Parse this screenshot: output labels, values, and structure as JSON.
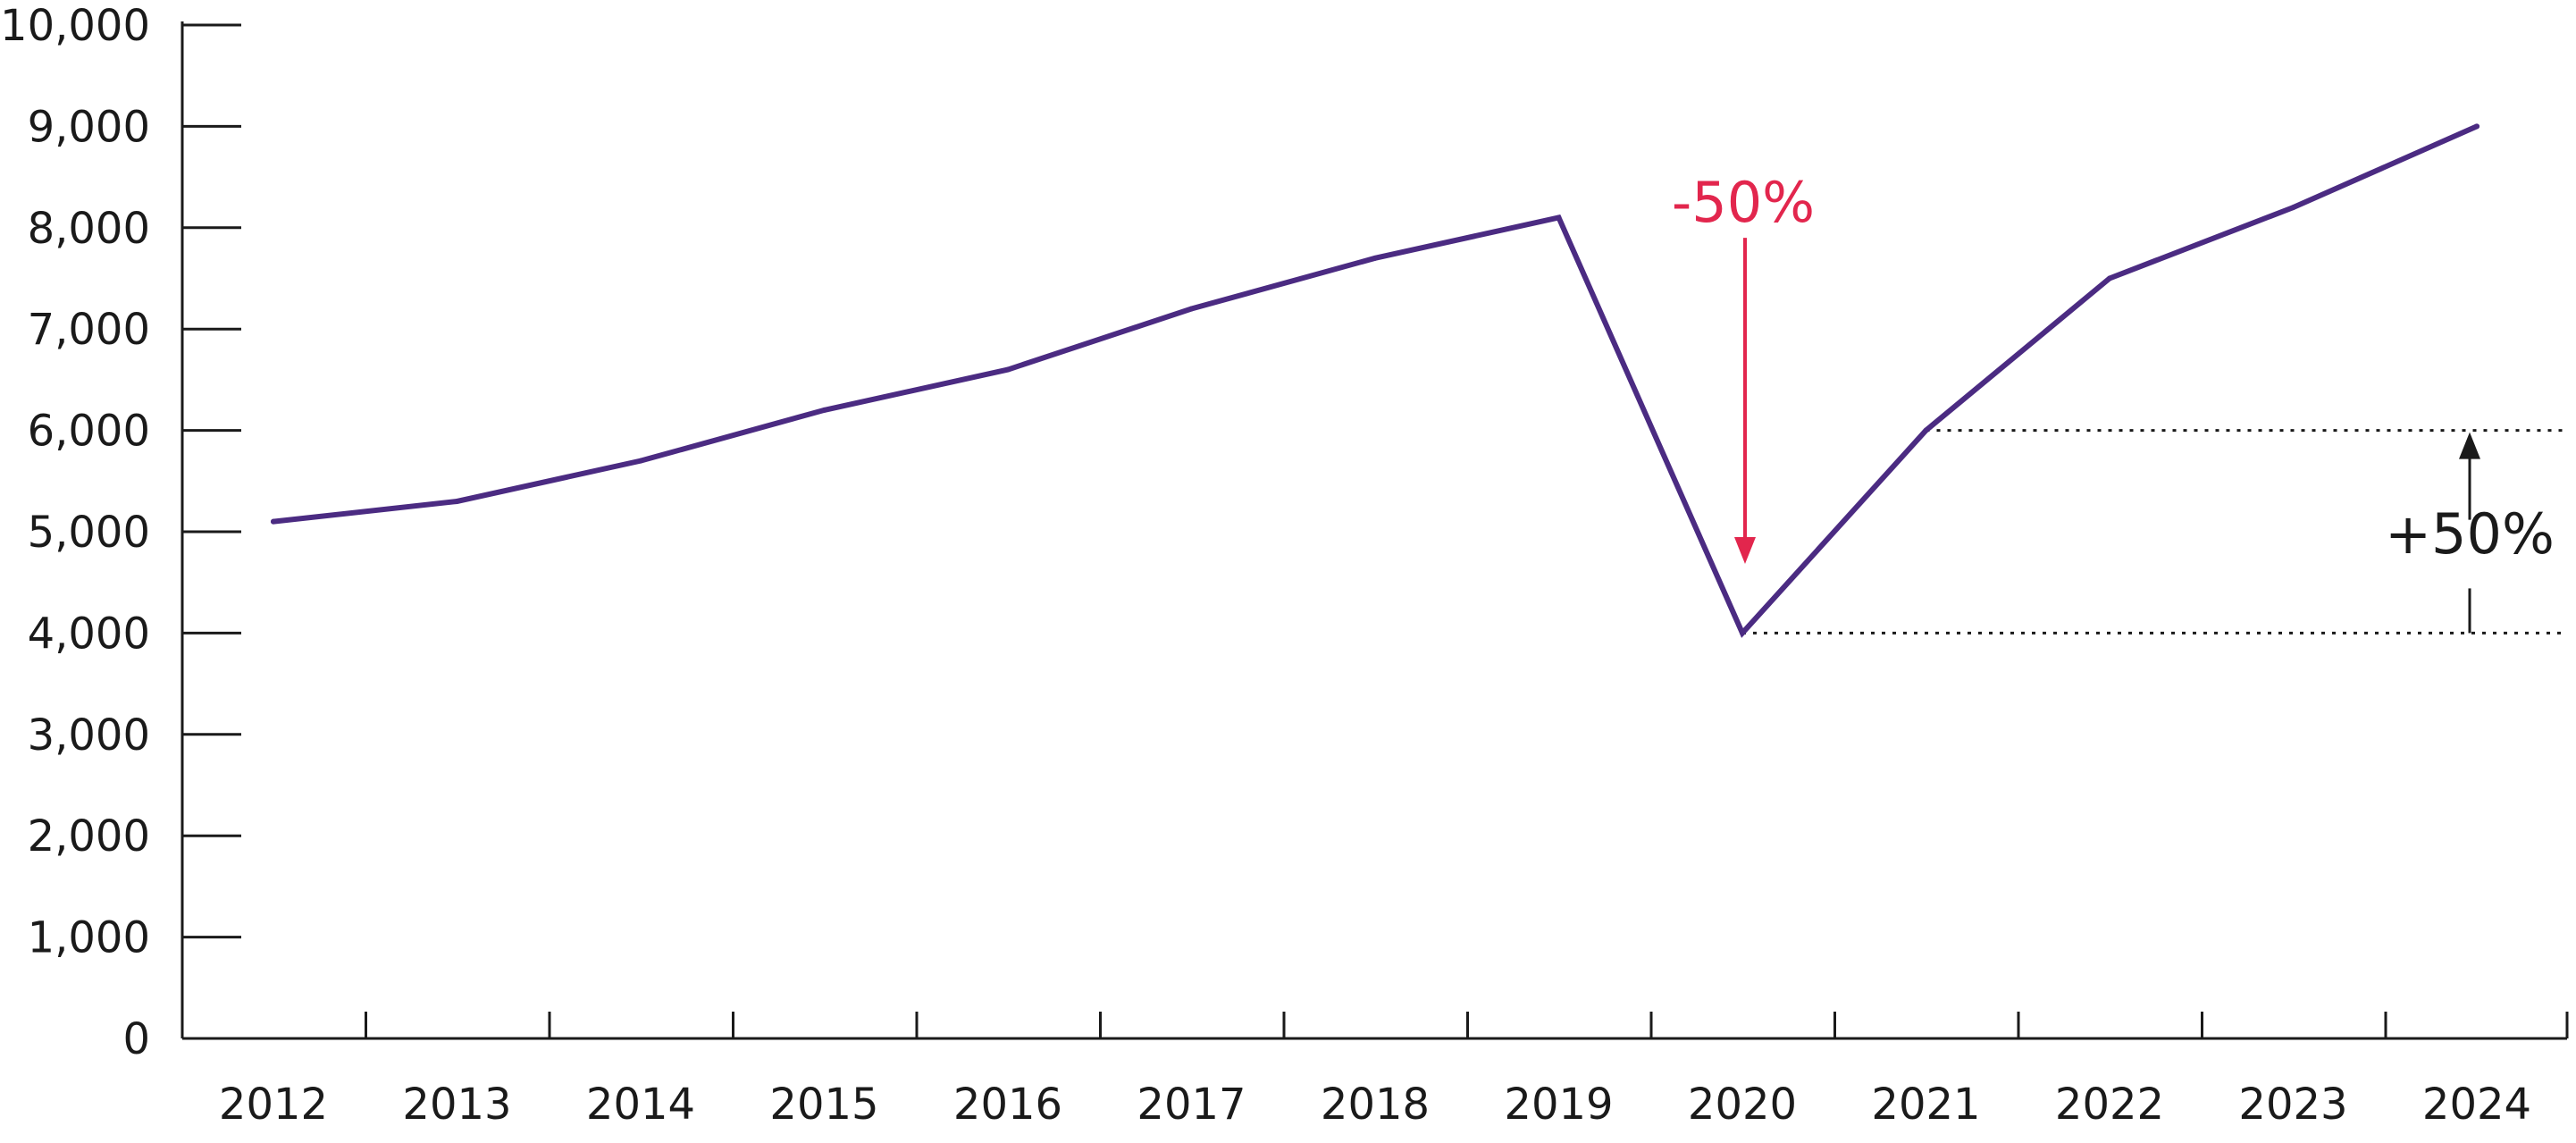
{
  "chart_data": {
    "type": "line",
    "title": "",
    "xlabel": "",
    "ylabel": "",
    "x": [
      "2012",
      "2013",
      "2014",
      "2015",
      "2016",
      "2017",
      "2018",
      "2019",
      "2020",
      "2021",
      "2022",
      "2023",
      "2024"
    ],
    "series": [
      {
        "values": [
          5100,
          5300,
          5700,
          6200,
          6600,
          7200,
          7700,
          8100,
          4000,
          6000,
          7500,
          8200,
          9000
        ],
        "color": "#4b2b82"
      }
    ],
    "ylim": [
      0,
      10000
    ],
    "yticks": [
      0,
      1000,
      2000,
      3000,
      4000,
      5000,
      6000,
      7000,
      8000,
      9000,
      10000
    ],
    "ytick_labels": [
      "0",
      "1,000",
      "2,000",
      "3,000",
      "4,000",
      "5,000",
      "6,000",
      "7,000",
      "8,000",
      "9,000",
      "10,000"
    ],
    "grid": false,
    "legend": "none",
    "annotations": {
      "drop": {
        "text": "-50%",
        "color": "#e2264d",
        "x": "2020",
        "arrow_from_y": 7900,
        "arrow_to_y": 4700
      },
      "rise": {
        "text": "+50%",
        "color": "#1a1a1a",
        "from_y": 4000,
        "to_y": 6000,
        "line_style": "dotted"
      }
    }
  }
}
